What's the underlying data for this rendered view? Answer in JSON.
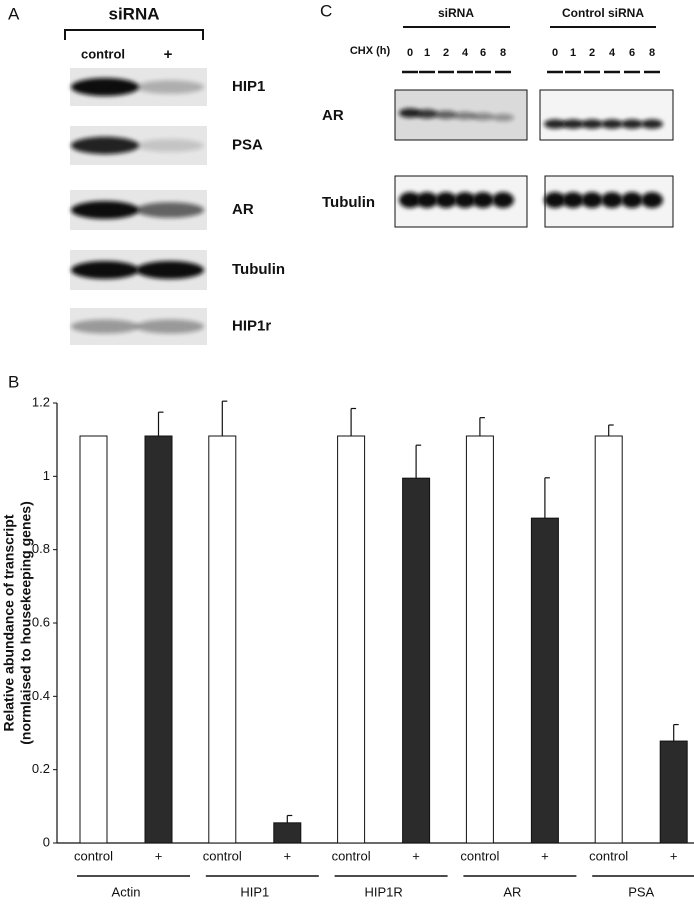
{
  "panel_a": {
    "label": "A",
    "treatment": "siRNA",
    "lanes": [
      "control",
      "+"
    ],
    "blots": [
      "HIP1",
      "PSA",
      "AR",
      "Tubulin",
      "HIP1r"
    ]
  },
  "panel_c": {
    "label": "C",
    "groups": [
      "siRNA",
      "Control siRNA"
    ],
    "time_label": "CHX (h)",
    "times": [
      0,
      1,
      2,
      4,
      6,
      8
    ],
    "blots": [
      "AR",
      "Tubulin"
    ]
  },
  "chart_data": {
    "type": "bar",
    "panel_label": "B",
    "y_label": [
      "Relative abundance of transcript",
      "(normlaised to housekeeping genes)"
    ],
    "categories": [
      "Actin",
      "HIP1",
      "HIP1R",
      "AR",
      "PSA"
    ],
    "series": [
      {
        "name": "control",
        "color": "#ffffff",
        "values": [
          1.11,
          1.11,
          1.11,
          1.11,
          1.11
        ],
        "errors": [
          null,
          0.095,
          0.075,
          0.05,
          0.03
        ]
      },
      {
        "name": "+",
        "color": "#2b2b2b",
        "values": [
          1.11,
          0.055,
          0.995,
          0.886,
          0.278
        ],
        "errors": [
          0.065,
          0.02,
          0.09,
          0.11,
          0.045
        ]
      }
    ],
    "ylim": [
      0,
      1.2
    ],
    "yticks": [
      0,
      0.2,
      0.4,
      0.6,
      0.8,
      1,
      1.2
    ]
  }
}
